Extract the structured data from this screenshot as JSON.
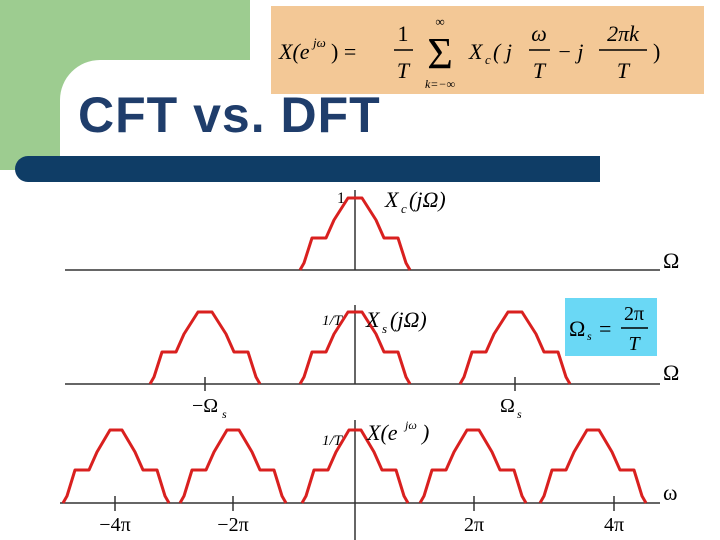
{
  "slide": {
    "title": "CFT vs. DFT"
  },
  "colors": {
    "title": "#1f3d6b",
    "rule": "#0f3d66",
    "green": "#9dcc90",
    "formula_bg": "#f3c896",
    "omega_box_bg": "#6ad8f5",
    "curve": "#d9201f"
  },
  "plot1": {
    "amp_label": "1",
    "fn_main": "X",
    "fn_sub": "c",
    "fn_arg": "(jΩ)",
    "axis_label": "Ω"
  },
  "plot2": {
    "amp_label": "1/T",
    "fn_main": "X",
    "fn_sub": "s",
    "fn_arg": "(jΩ)",
    "axis_label": "Ω",
    "tick_left": "−Ω",
    "tick_left_sub": "s",
    "tick_right": "Ω",
    "tick_right_sub": "s"
  },
  "plot3": {
    "amp_label": "1/T",
    "fn_main": "X(e",
    "fn_sup": "jω",
    "fn_end": ")",
    "axis_label": "ω",
    "ticks": [
      "−4π",
      "−2π",
      "2π",
      "4π"
    ]
  },
  "omega_box": {
    "lhs": "Ω",
    "lhs_sub": "s",
    "eq": "=",
    "num": "2π",
    "den": "T"
  },
  "formula": {
    "lhs": "X(e",
    "lhs_sup": "jω",
    "lhs_end": ") =",
    "frac1_num": "1",
    "frac1_den": "T",
    "sum_top": "∞",
    "sum_sym": "Σ",
    "sum_bottom": "k=−∞",
    "xc": "X",
    "xc_sub": "c",
    "paren_open": "( j",
    "frac2_num": "ω",
    "frac2_den": "T",
    "minus_j": "− j",
    "frac3_num": "2πk",
    "frac3_den": "T",
    "paren_close": ")"
  }
}
